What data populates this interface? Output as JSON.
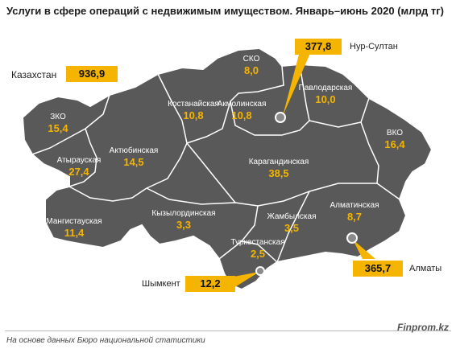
{
  "title": "Услуги в сфере операций с недвижимым имуществом. Январь–июнь 2020 (млрд тг)",
  "total": {
    "label": "Казахстан",
    "value": "936,9"
  },
  "regions": [
    {
      "id": "sko",
      "name": "СКО",
      "value": "8,0"
    },
    {
      "id": "kostanay",
      "name": "Костанайская",
      "value": "10,8"
    },
    {
      "id": "akmola",
      "name": "Акмолинская",
      "value": "10,8"
    },
    {
      "id": "pavlodar",
      "name": "Павлодарская",
      "value": "10,0"
    },
    {
      "id": "zko",
      "name": "ЗКО",
      "value": "15,4"
    },
    {
      "id": "aktobe",
      "name": "Актюбинская",
      "value": "14,5"
    },
    {
      "id": "atyrau",
      "name": "Атырауская",
      "value": "27,4"
    },
    {
      "id": "karaganda",
      "name": "Карагандинская",
      "value": "38,5"
    },
    {
      "id": "vko",
      "name": "ВКО",
      "value": "16,4"
    },
    {
      "id": "mangystau",
      "name": "Мангистауская",
      "value": "11,4"
    },
    {
      "id": "kyzylorda",
      "name": "Кызылординская",
      "value": "3,3"
    },
    {
      "id": "zhambyl",
      "name": "Жамбылская",
      "value": "3,5"
    },
    {
      "id": "almaty",
      "name": "Алматинская",
      "value": "8,7"
    },
    {
      "id": "turkestan",
      "name": "Туркестанская",
      "value": "2,5"
    }
  ],
  "cities": [
    {
      "id": "nur-sultan",
      "name": "Нур-Султан",
      "value": "377,8"
    },
    {
      "id": "almaty-city",
      "name": "Алматы",
      "value": "365,7"
    },
    {
      "id": "shymkent",
      "name": "Шымкент",
      "value": "12,2"
    }
  ],
  "footer": {
    "source": "На основе данных Бюро национальной статистики",
    "brand": "Finprom.kz"
  },
  "colors": {
    "map_fill": "#595959",
    "border": "#ffffff",
    "region_name": "#ffffff",
    "value": "#f5b400",
    "badge": "#f5b400"
  }
}
